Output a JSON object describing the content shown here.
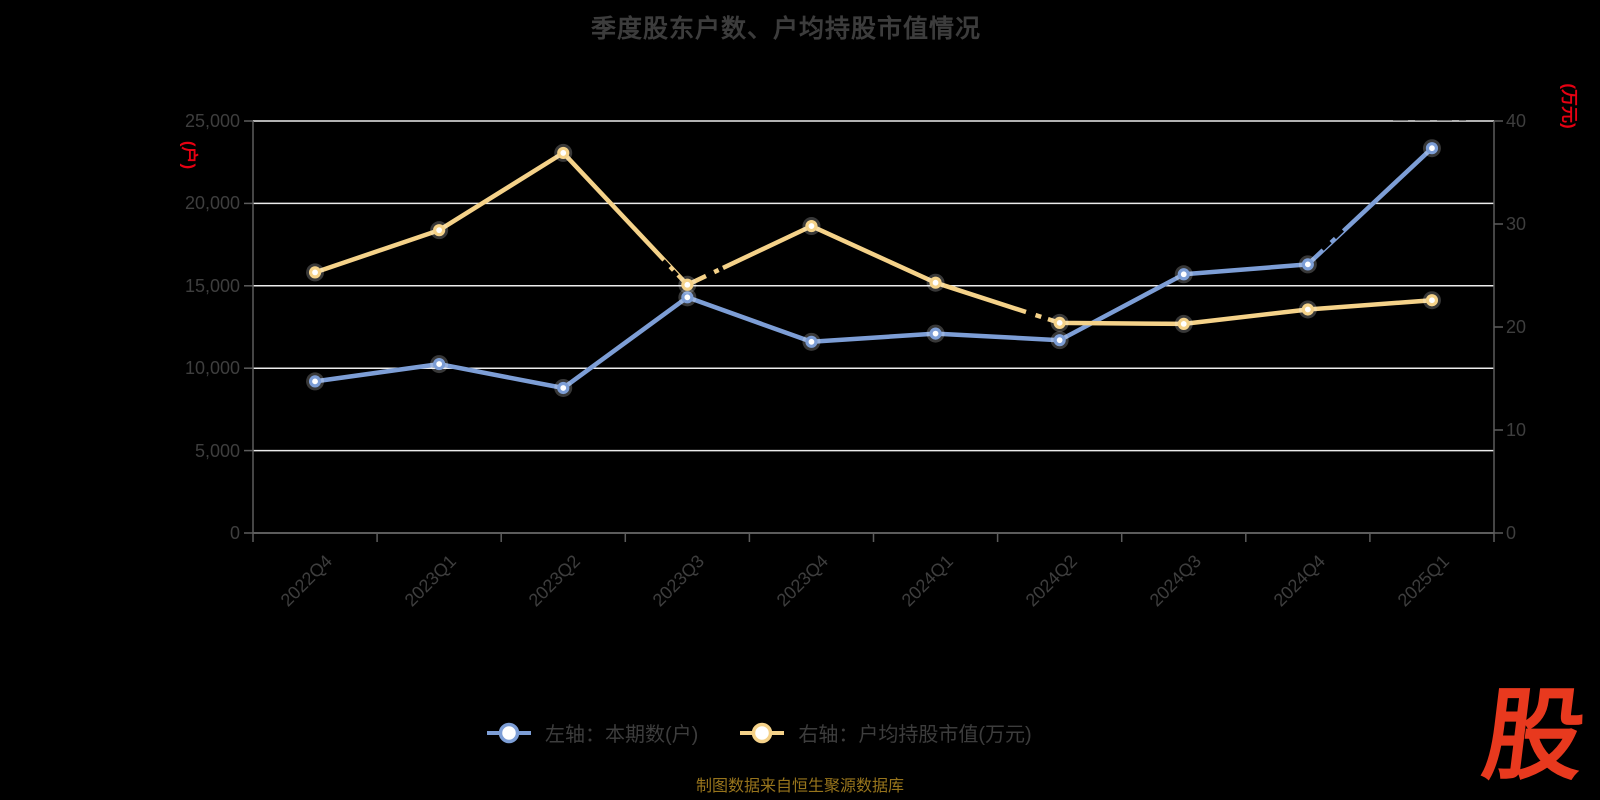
{
  "title": "季度股东户数、户均持股市值情况",
  "axes": {
    "left": {
      "unit": "(户)",
      "ticks": [
        "25,000",
        "20,000",
        "15,000",
        "10,000",
        "5,000",
        "0"
      ]
    },
    "right": {
      "unit": "(万元)",
      "ticks": [
        "40",
        "30",
        "20",
        "10",
        "0"
      ]
    }
  },
  "legend": {
    "items": [
      {
        "label": "左轴：本期数(户)",
        "color": "#7d9ed6"
      },
      {
        "label": "右轴：户均持股市值(万元)",
        "color": "#f5d289"
      }
    ]
  },
  "footer": {
    "source": "制图数据来自恒生聚源数据库"
  },
  "logo": {
    "text": "股",
    "color": "#e8391e"
  },
  "colors": {
    "background": "#000000",
    "gridline": "#ececec",
    "axis_line": "#5c5c5c",
    "axis_text": "#3e3e3e",
    "title_text": "#3c3c3c",
    "unit_text": "#e60012",
    "footer_text": "#97741c",
    "series_blue": "#7d9ed6",
    "series_yellow": "#f5d289",
    "marker_fill": "#ffffff"
  },
  "chart_data": {
    "type": "line",
    "categories": [
      "2022Q4",
      "2023Q1",
      "2023Q2",
      "2023Q3",
      "2023Q4",
      "2024Q1",
      "2024Q2",
      "2024Q3",
      "2024Q4",
      "2025Q1"
    ],
    "series": [
      {
        "name": "左轴：本期数(户)",
        "yaxis": "left",
        "color": "#7d9ed6",
        "values": [
          9200,
          10250,
          8800,
          14300,
          11600,
          12100,
          11700,
          15700,
          16300,
          23350
        ]
      },
      {
        "name": "右轴：户均持股市值(万元)",
        "yaxis": "right",
        "color": "#f5d289",
        "values": [
          25.3,
          29.4,
          36.9,
          24.1,
          29.8,
          24.3,
          20.4,
          20.3,
          21.7,
          22.6
        ]
      }
    ],
    "title": "季度股东户数、户均持股市值情况",
    "xlabel": "",
    "ylabel_left": "(户)",
    "ylabel_right": "(万元)",
    "left_ylim": [
      0,
      25000
    ],
    "left_tick_step": 5000,
    "right_ylim": [
      0,
      40
    ],
    "right_tick_step": 10,
    "grid": true,
    "legend_position": "bottom"
  }
}
